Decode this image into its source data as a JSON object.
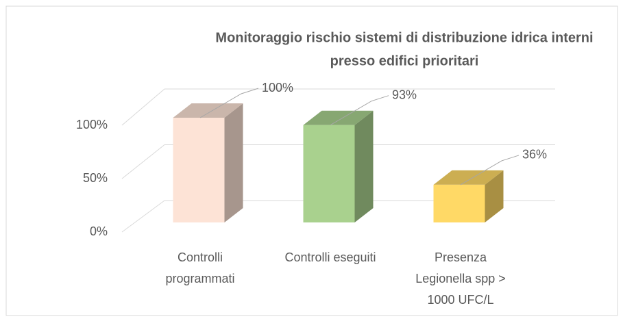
{
  "chart_data": {
    "type": "bar3d",
    "title": [
      "Monitoraggio rischio sistemi di distribuzione idrica interni",
      "presso edifici prioritari"
    ],
    "categories": [
      [
        "Controlli",
        "programmati"
      ],
      [
        "Controlli eseguiti"
      ],
      [
        "Presenza",
        "Legionella spp >",
        "1000 UFC/L"
      ]
    ],
    "values": [
      100,
      93,
      36
    ],
    "value_labels": [
      "100%",
      "93%",
      "36%"
    ],
    "colors": [
      "#fde3d6",
      "#a9d18e",
      "#ffd966"
    ],
    "ylim": [
      0,
      100
    ],
    "yticks": [
      {
        "value": 0,
        "label": "0%"
      },
      {
        "value": 50,
        "label": "50%"
      },
      {
        "value": 100,
        "label": "100%"
      }
    ],
    "grid": true
  }
}
